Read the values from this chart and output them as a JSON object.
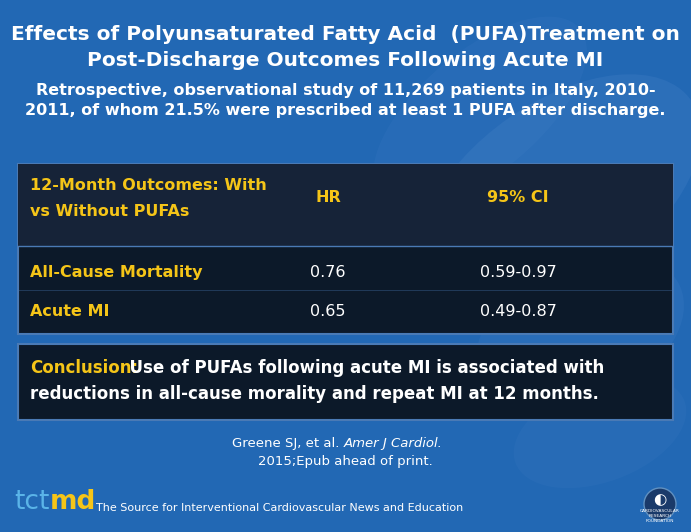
{
  "title_line1": "Effects of Polyunsaturated Fatty Acid  (PUFA)Treatment on",
  "title_line2": "Post-Discharge Outcomes Following Acute MI",
  "subtitle_line1": "Retrospective, observational study of 11,269 patients in Italy, 2010-",
  "subtitle_line2": "2011, of whom 21.5% were prescribed at least 1 PUFA after discharge.",
  "col_hr": "HR",
  "col_ci": "95% CI",
  "header_col1": "12-Month Outcomes: With",
  "header_col1b": "vs Without PUFAs",
  "row1_label": "All-Cause Mortality",
  "row1_hr": "0.76",
  "row1_ci": "0.59-0.97",
  "row2_label": "Acute MI",
  "row2_hr": "0.65",
  "row2_ci": "0.49-0.87",
  "conclusion_label": "Conclusion:",
  "conclusion_rest1": "  Use of PUFAs following acute MI is associated with",
  "conclusion_rest2": "reductions in all-cause morality and repeat MI at 12 months.",
  "citation_normal": "Greene SJ, et al. ",
  "citation_italic": "Amer J Cardiol.",
  "citation_line2": "2015;Epub ahead of print.",
  "footer_text": "The Source for Interventional Cardiovascular News and Education",
  "bg_blue": "#2268b4",
  "bg_blue_dark": "#1a4f8a",
  "table_bg": "#0c1929",
  "table_header_bg": "#162338",
  "conclusion_bg": "#0c1929",
  "border_blue": "#4a7ab5",
  "yellow": "#f5c518",
  "white": "#ffffff",
  "tct_blue": "#5ab4e8",
  "title_fs": 14.5,
  "subtitle_fs": 11.5,
  "table_fs": 11.5,
  "conc_fs": 12.0,
  "footer_fs": 8.0,
  "citation_fs": 9.5
}
